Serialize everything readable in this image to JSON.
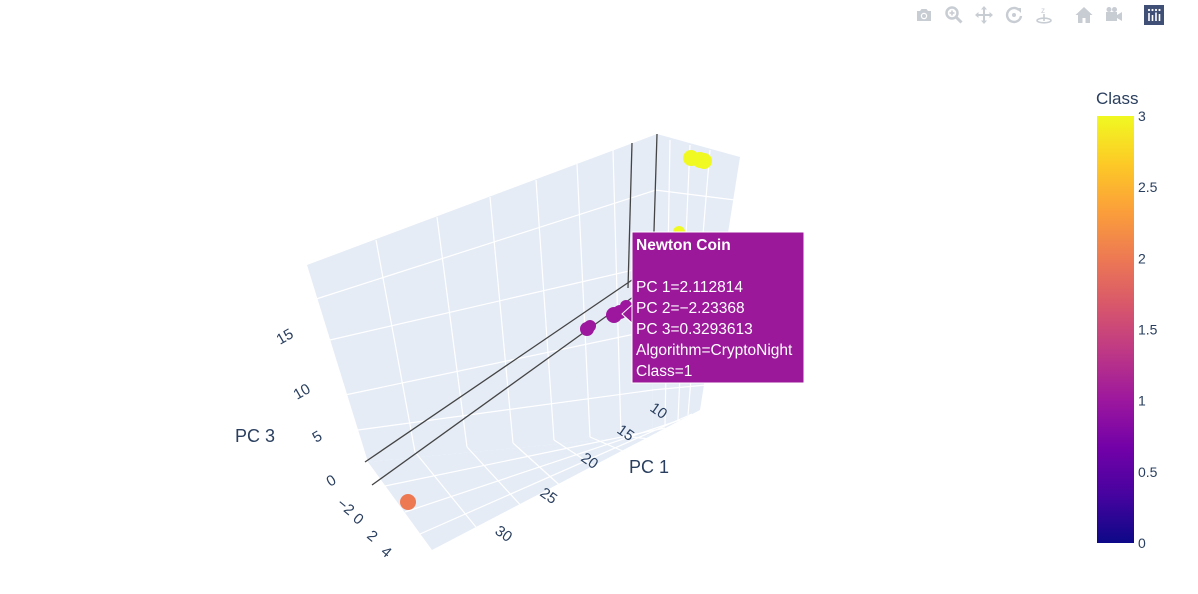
{
  "modebar": {
    "icons": [
      "camera-icon",
      "zoom-icon",
      "pan-icon",
      "orbit-rotation-icon",
      "turntable-rotation-icon",
      "reset-camera-icon",
      "save-camera-icon",
      "plotly-logo-icon"
    ]
  },
  "colors": {
    "scene_bg": "#e5ecf6",
    "grid": "#ffffff",
    "zero_line": "#444444",
    "hover_bg": "#9b189a",
    "colorscale": [
      "#0d0887",
      "#46039f",
      "#7201a8",
      "#9c179e",
      "#bd3786",
      "#d8576b",
      "#ed7953",
      "#fb9f3a",
      "#fdca26",
      "#f0f921"
    ]
  },
  "chart_data": {
    "type": "scatter3d",
    "axes": {
      "x": {
        "title": "PC 1",
        "ticks": [
          "10",
          "15",
          "20",
          "25",
          "30"
        ]
      },
      "y": {
        "title": "",
        "ticks": [
          "−2",
          "0",
          "2",
          "4"
        ]
      },
      "z": {
        "title": "PC 3",
        "ticks": [
          "0",
          "5",
          "10",
          "15"
        ]
      }
    },
    "colorbar": {
      "title": "Class",
      "ticks": [
        "0",
        "0.5",
        "1",
        "1.5",
        "2",
        "2.5",
        "3"
      ],
      "range": [
        0,
        3
      ]
    },
    "points": [
      {
        "cls": 3
      },
      {
        "cls": 3
      },
      {
        "cls": 3
      },
      {
        "cls": 3
      },
      {
        "cls": 1
      },
      {
        "cls": 1
      },
      {
        "cls": 1
      },
      {
        "cls": 1
      },
      {
        "cls": 1
      },
      {
        "cls": 2
      }
    ],
    "hover": {
      "title": "Newton Coin",
      "lines": [
        "PC 1=2.112814",
        "PC 2=−2.23368",
        "PC 3=0.3293613",
        "Algorithm=CryptoNight",
        "Class=1"
      ]
    }
  }
}
